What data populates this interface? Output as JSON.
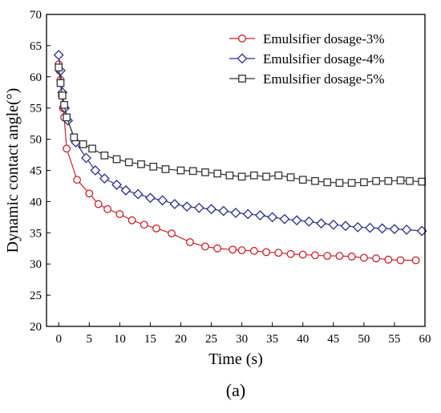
{
  "chart_data": {
    "type": "line",
    "xlabel": "Time (s)",
    "ylabel": "Dynamic contact angle(°)",
    "panel_label": "(a)",
    "xlim": [
      -2,
      60
    ],
    "ylim": [
      20,
      70
    ],
    "xticks": [
      0,
      5,
      10,
      15,
      20,
      25,
      30,
      35,
      40,
      45,
      50,
      55,
      60
    ],
    "yticks": [
      20,
      25,
      30,
      35,
      40,
      45,
      50,
      55,
      60,
      65,
      70
    ],
    "legend_position": "top-right",
    "grid": false,
    "series": [
      {
        "name": "Emulsifier dosage-3%",
        "color": "#c8202a",
        "marker": "circle",
        "x": [
          0,
          0.15,
          0.3,
          0.5,
          0.7,
          0.9,
          1.3,
          3,
          5,
          6.5,
          8,
          10,
          12,
          14,
          16,
          18.5,
          21.5,
          24,
          26,
          28.5,
          30,
          32,
          34,
          36,
          38,
          40,
          42,
          44,
          46,
          48,
          50,
          52,
          54,
          56,
          58.5
        ],
        "y": [
          62,
          61,
          59.5,
          57,
          55,
          53.5,
          48.5,
          43.5,
          41.3,
          39.6,
          38.8,
          38,
          37,
          36.3,
          35.7,
          34.9,
          33.5,
          32.8,
          32.5,
          32.3,
          32.2,
          32.1,
          31.9,
          31.8,
          31.6,
          31.5,
          31.4,
          31.3,
          31.3,
          31.2,
          31,
          30.9,
          30.7,
          30.6,
          30.6
        ]
      },
      {
        "name": "Emulsifier dosage-4%",
        "color": "#2a2e8c",
        "marker": "diamond",
        "x": [
          0,
          0.3,
          0.6,
          1,
          1.5,
          2.8,
          4.5,
          6,
          7.5,
          9.5,
          11,
          13,
          15,
          17,
          19,
          21,
          23,
          25,
          27,
          29,
          31,
          33,
          35,
          37,
          39,
          41,
          43,
          45,
          47,
          49,
          51,
          53,
          55,
          57,
          59.5
        ],
        "y": [
          63.5,
          61,
          57.5,
          55,
          53,
          49.5,
          47,
          45,
          43.7,
          42.7,
          41.8,
          41.2,
          40.6,
          40.2,
          39.6,
          39.2,
          39,
          38.8,
          38.5,
          38.2,
          38,
          37.8,
          37.5,
          37.2,
          37,
          36.8,
          36.5,
          36.3,
          36.1,
          35.9,
          35.8,
          35.7,
          35.6,
          35.5,
          35.3
        ]
      },
      {
        "name": "Emulsifier dosage-5%",
        "color": "#333333",
        "marker": "square",
        "x": [
          0,
          0.3,
          0.6,
          0.9,
          1.3,
          2.5,
          4,
          5.5,
          7.5,
          9.5,
          11.5,
          13.5,
          15.5,
          17.5,
          20,
          22,
          24,
          26,
          28,
          30,
          32,
          34,
          36,
          38,
          40,
          42,
          44,
          46,
          48,
          50,
          52,
          54,
          56,
          57.5,
          59.5
        ],
        "y": [
          61.5,
          59,
          57,
          55.5,
          53.5,
          50.3,
          49.2,
          48.5,
          47.4,
          46.8,
          46.3,
          46,
          45.6,
          45.2,
          45,
          44.9,
          44.7,
          44.5,
          44.2,
          44,
          44.2,
          44,
          44.2,
          43.9,
          43.5,
          43.3,
          43.1,
          43,
          43,
          43.1,
          43.3,
          43.3,
          43.4,
          43.3,
          43.2
        ]
      }
    ]
  }
}
